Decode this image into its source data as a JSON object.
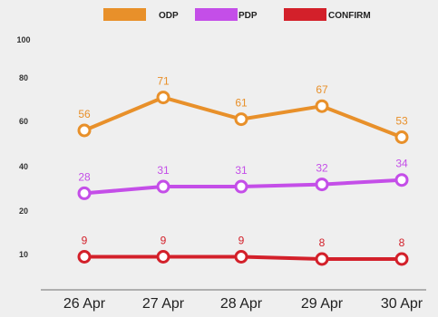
{
  "chart_data": {
    "type": "line",
    "categories": [
      "26 Apr",
      "27 Apr",
      "28 Apr",
      "29 Apr",
      "30 Apr"
    ],
    "y_ticks": [
      "10",
      "20",
      "40",
      "60",
      "80",
      "100"
    ],
    "grid": false,
    "legend_position": "top",
    "series": [
      {
        "name": "ODP",
        "color": "#e8902a",
        "values": [
          56,
          71,
          61,
          67,
          53
        ],
        "labels": [
          "56",
          "71",
          "61",
          "67",
          "53"
        ]
      },
      {
        "name": "PDP",
        "color": "#c44ee8",
        "values": [
          28,
          31,
          31,
          32,
          34
        ],
        "labels": [
          "28",
          "31",
          "31",
          "32",
          "34"
        ]
      },
      {
        "name": "CONFIRM",
        "color": "#d3202a",
        "values": [
          9,
          9,
          9,
          8,
          8
        ],
        "labels": [
          "9",
          "9",
          "9",
          "8",
          "8"
        ]
      }
    ]
  }
}
